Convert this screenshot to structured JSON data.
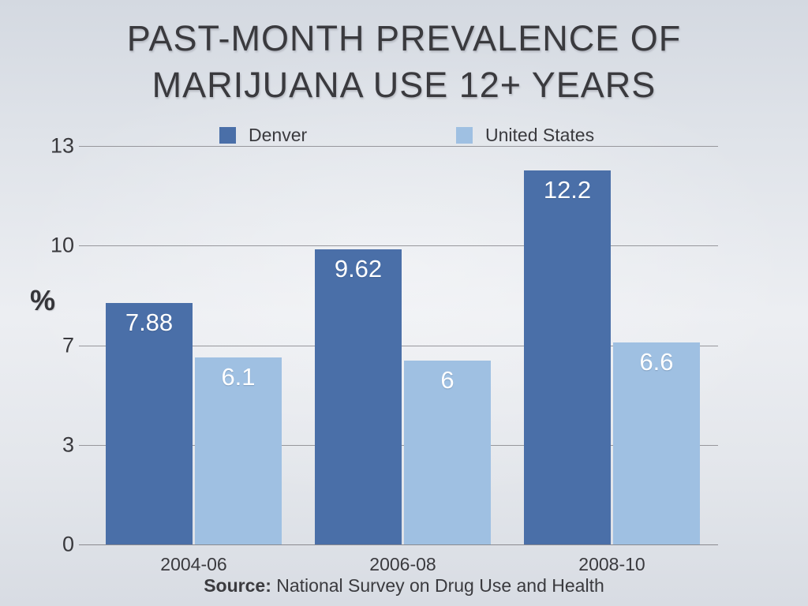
{
  "slide": {
    "title": "PAST-MONTH PREVALENCE OF\nMARIJUANA USE 12+ YEARS",
    "ylabel": "%",
    "source_label": "Source:",
    "source_text": " National Survey on Drug Use and Health"
  },
  "legend": {
    "position": "top",
    "items": [
      {
        "label": "Denver",
        "color": "#4a6fa8"
      },
      {
        "label": "United States",
        "color": "#9fc0e2"
      }
    ]
  },
  "chart_data": {
    "type": "bar",
    "title": "PAST-MONTH PREVALENCE OF MARIJUANA USE 12+ YEARS",
    "categories": [
      "2004-06",
      "2006-08",
      "2008-10"
    ],
    "series": [
      {
        "name": "Denver",
        "color": "#4a6fa8",
        "values": [
          7.88,
          9.62,
          12.2
        ],
        "value_labels": [
          "7.88",
          "9.62",
          "12.2"
        ]
      },
      {
        "name": "United States",
        "color": "#9fc0e2",
        "values": [
          6.1,
          6,
          6.6
        ],
        "value_labels": [
          "6.1",
          "6",
          "6.6"
        ]
      }
    ],
    "xlabel": "",
    "ylabel": "%",
    "ylim": [
      0,
      13
    ],
    "ytick_labels": [
      "0",
      "3",
      "7",
      "10",
      "13"
    ],
    "grid": true,
    "legend_position": "top",
    "value_label_color": "#ffffff",
    "gridline_color": "#97979c",
    "source": "Source: National Survey on Drug Use and Health"
  }
}
